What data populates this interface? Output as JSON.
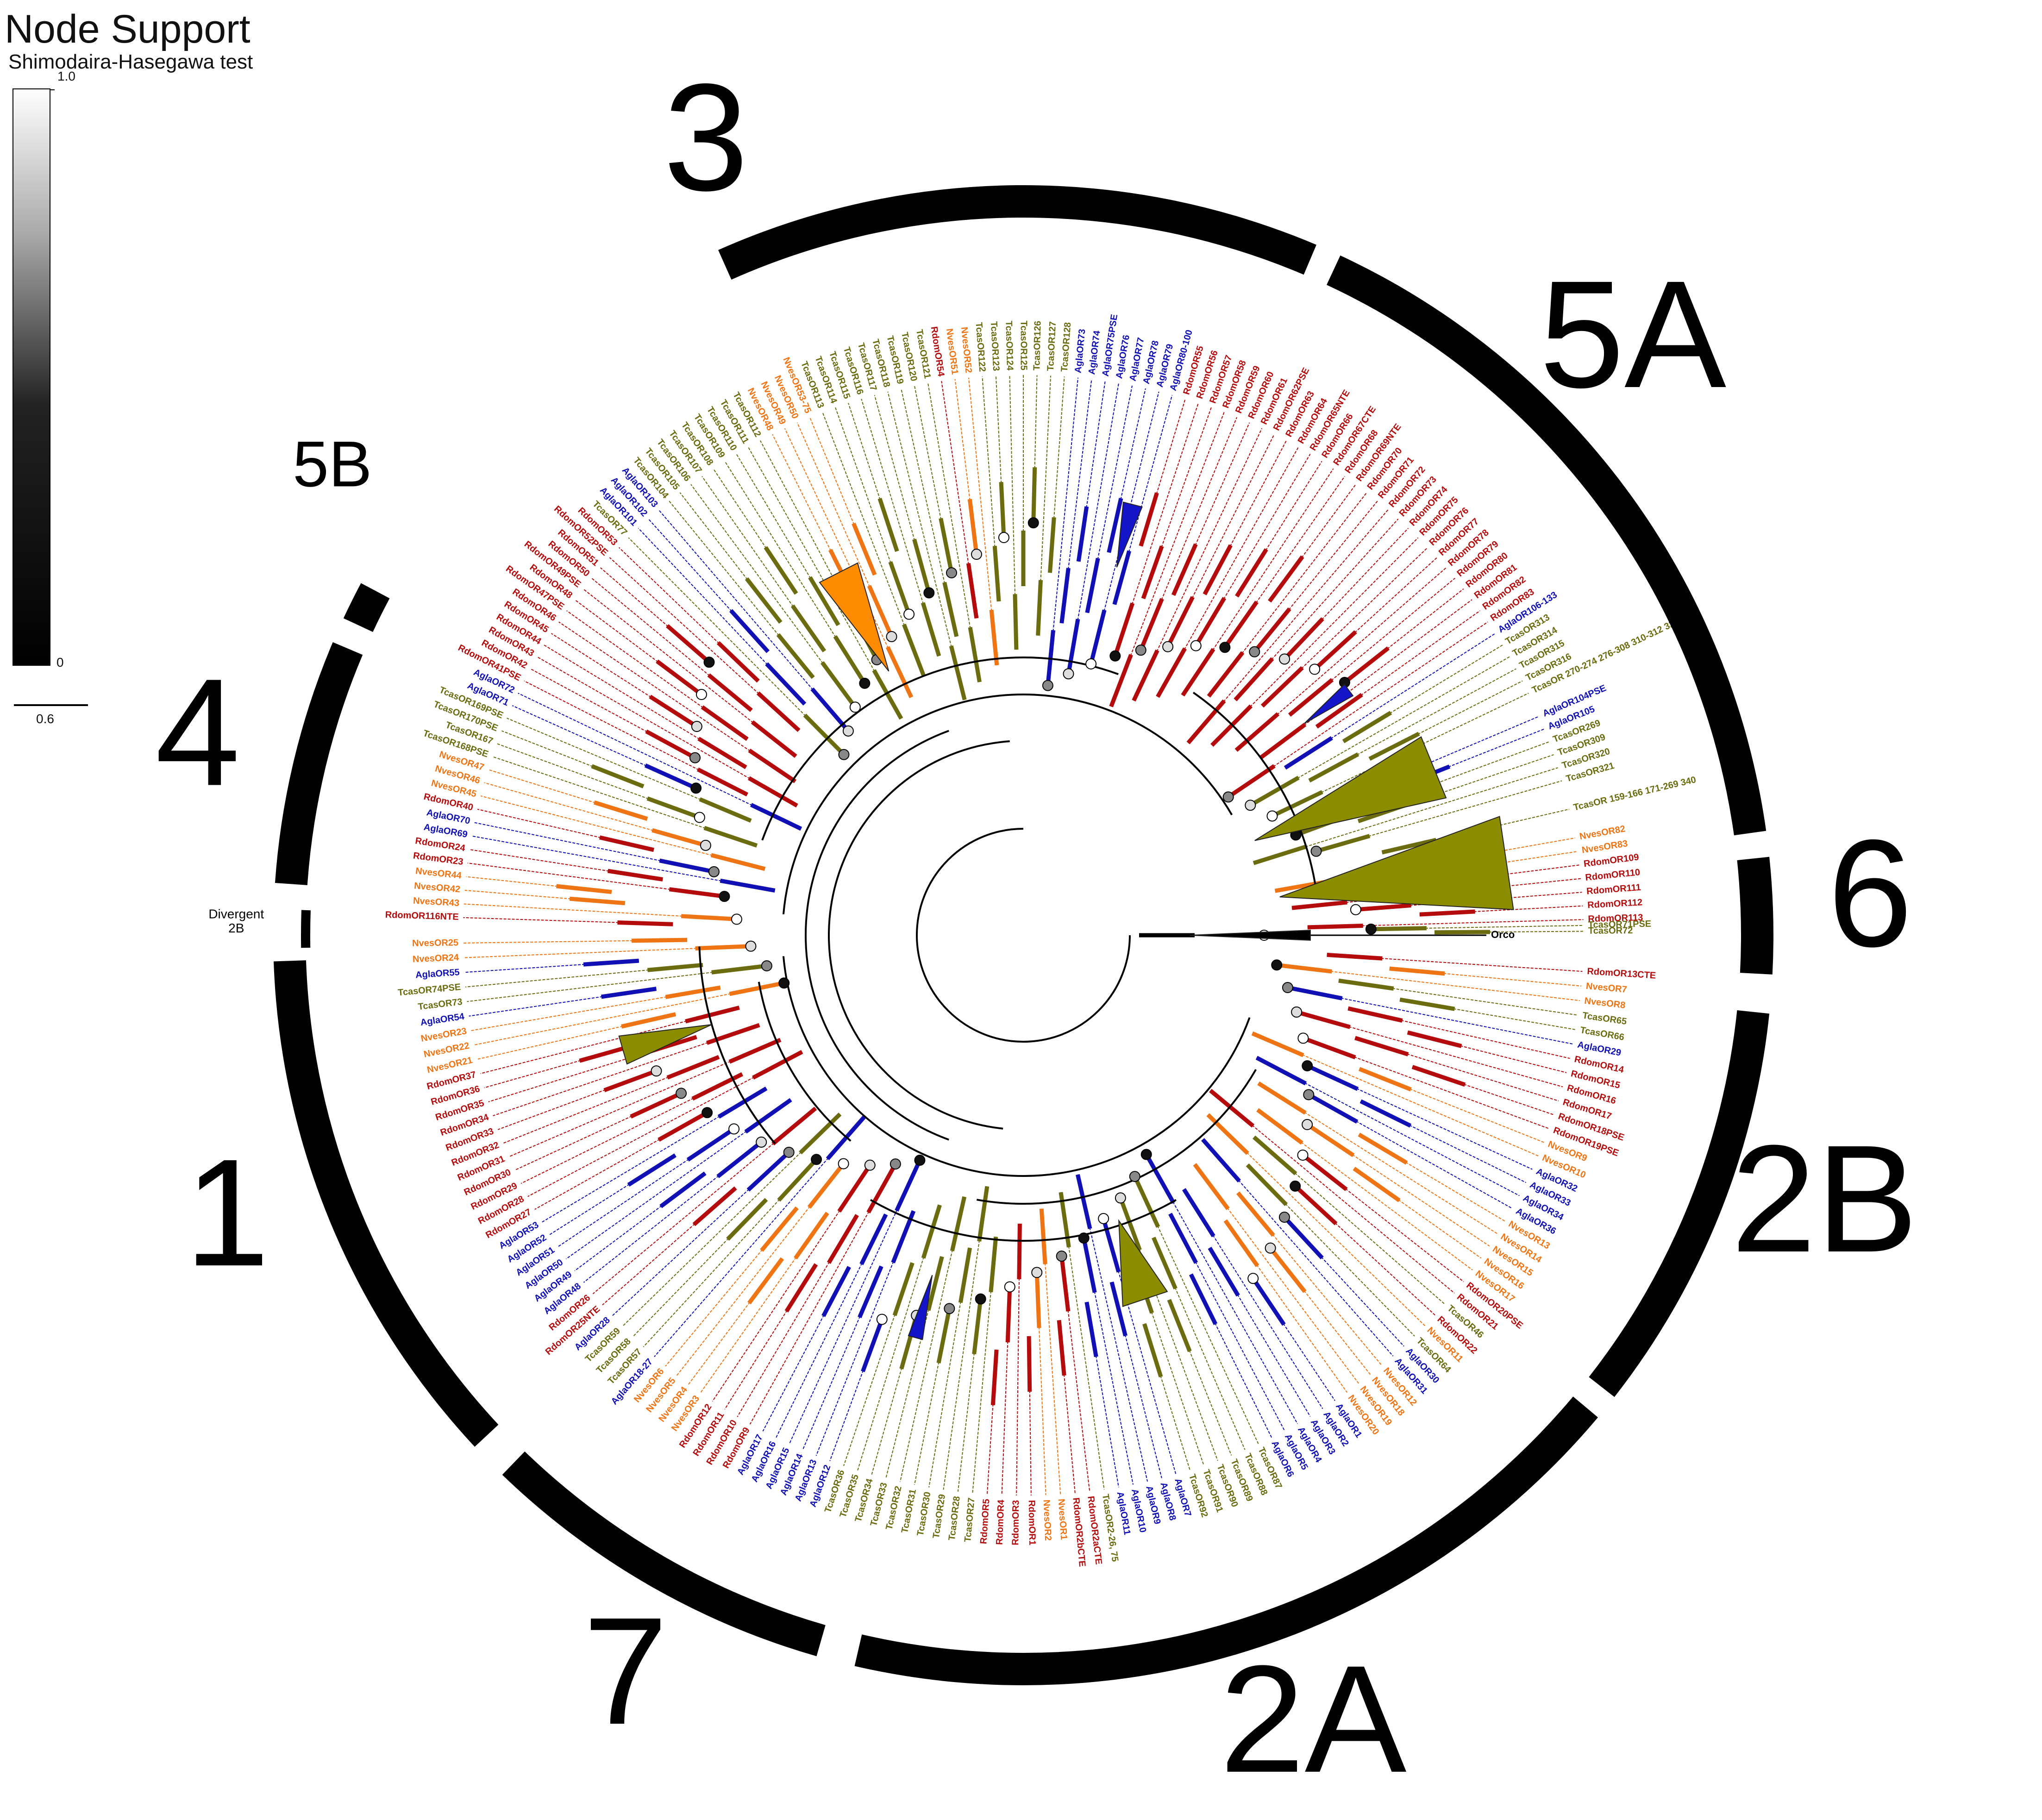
{
  "legend": {
    "title": "Node Support",
    "subtitle": "Shimodaira-Hasegawa test",
    "scale_max": "1.0",
    "scale_min": "0",
    "branch_scale": "0.6"
  },
  "colors": {
    "Agla": "#1010b4",
    "Rdom": "#b40c0c",
    "Nves": "#ee7414",
    "Tcas": "#6b6b10",
    "Orco": "#000000",
    "collapsed_tcas": "#8c8c00",
    "collapsed_nves": "#ff8c00",
    "collapsed_agla": "#1414c8"
  },
  "clades": [
    {
      "label": "3",
      "start_deg": -114,
      "end_deg": -67,
      "size": "large",
      "label_deg": -112
    },
    {
      "label": "5A",
      "start_deg": -65,
      "end_deg": -8,
      "size": "large",
      "label_deg": -44
    },
    {
      "label": "6",
      "start_deg": -6,
      "end_deg": 3,
      "size": "large",
      "label_deg": -2
    },
    {
      "label": "2B",
      "start_deg": 6,
      "end_deg": 38,
      "size": "large",
      "label_deg": 19
    },
    {
      "label": "2A",
      "start_deg": 40,
      "end_deg": 103,
      "size": "large",
      "label_deg": 70
    },
    {
      "label": "7",
      "start_deg": 106,
      "end_deg": 134,
      "size": "large",
      "label_deg": 118
    },
    {
      "label": "1",
      "start_deg": 137,
      "end_deg": 178,
      "size": "large",
      "label_deg": 160
    },
    {
      "label": "Divergent 2B",
      "start_deg": 179,
      "end_deg": 182,
      "size": "tiny",
      "label_deg": 181
    },
    {
      "label": "4",
      "start_deg": 184,
      "end_deg": 203,
      "size": "large",
      "label_deg": 193
    },
    {
      "label": "5B",
      "start_deg": 205,
      "end_deg": 208,
      "size": "small",
      "label_deg": 214
    }
  ],
  "outgroup_label": "Orco",
  "tree_leaves": [
    {
      "label": "Orco",
      "deg": 0.0
    },
    {
      "label": "RdomOR13CTE",
      "deg": 3.7
    },
    {
      "label": "NvesOR7",
      "deg": 5.2
    },
    {
      "label": "NvesOR8",
      "deg": 6.7
    },
    {
      "label": "TcasOR65",
      "deg": 8.2
    },
    {
      "label": "TcasOR66",
      "deg": 9.7
    },
    {
      "label": "AglaOR29",
      "deg": 11.2
    },
    {
      "label": "RdomOR14",
      "deg": 12.7
    },
    {
      "label": "RdomOR15",
      "deg": 14.2
    },
    {
      "label": "RdomOR16",
      "deg": 15.7
    },
    {
      "label": "RdomOR17",
      "deg": 17.2
    },
    {
      "label": "RdomOR18PSE",
      "deg": 18.7
    },
    {
      "label": "RdomOR19PSE",
      "deg": 20.2
    },
    {
      "label": "NvesOR9",
      "deg": 21.7
    },
    {
      "label": "NvesOR10",
      "deg": 23.2
    },
    {
      "label": "AglaOR32",
      "deg": 24.7
    },
    {
      "label": "AglaOR33",
      "deg": 26.2
    },
    {
      "label": "AglaOR34",
      "deg": 27.7
    },
    {
      "label": "AglaOR36",
      "deg": 29.2
    },
    {
      "label": "NvesOR13",
      "deg": 30.7
    },
    {
      "label": "NvesOR14",
      "deg": 32.2
    },
    {
      "label": "NvesOR15",
      "deg": 33.7
    },
    {
      "label": "NvesOR16",
      "deg": 35.2
    },
    {
      "label": "NvesOR17",
      "deg": 36.7
    },
    {
      "label": "RdomOR20PSE",
      "deg": 38.2
    },
    {
      "label": "RdomOR21",
      "deg": 39.7
    },
    {
      "label": "TcasOR46",
      "deg": 41.2
    },
    {
      "label": "RdomOR22",
      "deg": 42.7
    },
    {
      "label": "NvesOR11",
      "deg": 44.2
    },
    {
      "label": "TcasOR64",
      "deg": 45.7
    },
    {
      "label": "AglaOR30",
      "deg": 47.2
    },
    {
      "label": "AglaOR31",
      "deg": 48.7
    },
    {
      "label": "NvesOR12",
      "deg": 50.2
    },
    {
      "label": "NvesOR18",
      "deg": 51.7
    },
    {
      "label": "NvesOR19",
      "deg": 53.2
    },
    {
      "label": "NvesOR20",
      "deg": 54.7
    },
    {
      "label": "AglaOR1",
      "deg": 56.2
    },
    {
      "label": "AglaOR2",
      "deg": 57.7
    },
    {
      "label": "AglaOR3",
      "deg": 59.2
    },
    {
      "label": "AglaOR4",
      "deg": 60.7
    },
    {
      "label": "AglaOR5",
      "deg": 62.2
    },
    {
      "label": "AglaOR6",
      "deg": 63.7
    },
    {
      "label": "TcasOR87",
      "deg": 65.2
    },
    {
      "label": "TcasOR88",
      "deg": 66.7
    },
    {
      "label": "TcasOR89",
      "deg": 68.2
    },
    {
      "label": "TcasOR90",
      "deg": 69.7
    },
    {
      "label": "TcasOR91",
      "deg": 71.2
    },
    {
      "label": "TcasOR92",
      "deg": 72.7
    },
    {
      "label": "AglaOR7",
      "deg": 74.2
    },
    {
      "label": "AglaOR8",
      "deg": 75.7
    },
    {
      "label": "AglaOR9",
      "deg": 77.2
    },
    {
      "label": "AglaOR10",
      "deg": 78.7
    },
    {
      "label": "AglaOR11",
      "deg": 80.2
    },
    {
      "label": "TcasOR2-26, 75",
      "deg": 81.7
    },
    {
      "label": "RdomOR2aCTE",
      "deg": 83.2
    },
    {
      "label": "RdomOR2bCTE",
      "deg": 84.7
    },
    {
      "label": "NvesOR1",
      "deg": 86.2
    },
    {
      "label": "NvesOR2",
      "deg": 87.7
    },
    {
      "label": "RdomOR1",
      "deg": 89.2
    },
    {
      "label": "RdomOR3",
      "deg": 90.7
    },
    {
      "label": "RdomOR4",
      "deg": 92.2
    },
    {
      "label": "RdomOR5",
      "deg": 93.7
    },
    {
      "label": "TcasOR27",
      "deg": 95.2
    },
    {
      "label": "TcasOR28",
      "deg": 96.7
    },
    {
      "label": "TcasOR29",
      "deg": 98.2
    },
    {
      "label": "TcasOR30",
      "deg": 99.7
    },
    {
      "label": "TcasOR31",
      "deg": 101.2
    },
    {
      "label": "TcasOR32",
      "deg": 102.7
    },
    {
      "label": "TcasOR33",
      "deg": 104.2
    },
    {
      "label": "TcasOR34",
      "deg": 105.7
    },
    {
      "label": "TcasOR35",
      "deg": 107.2
    },
    {
      "label": "TcasOR36",
      "deg": 108.7
    },
    {
      "label": "AglaOR12",
      "deg": 110.2
    },
    {
      "label": "AglaOR13",
      "deg": 111.7
    },
    {
      "label": "AglaOR14",
      "deg": 113.2
    },
    {
      "label": "AglaOR15",
      "deg": 114.7
    },
    {
      "label": "AglaOR16",
      "deg": 116.2
    },
    {
      "label": "AglaOR17",
      "deg": 117.7
    },
    {
      "label": "RdomOR9",
      "deg": 119.2
    },
    {
      "label": "RdomOR10",
      "deg": 120.7
    },
    {
      "label": "RdomOR11",
      "deg": 122.2
    },
    {
      "label": "RdomOR12",
      "deg": 123.7
    },
    {
      "label": "NvesOR3",
      "deg": 125.2
    },
    {
      "label": "NvesOR4",
      "deg": 126.7
    },
    {
      "label": "NvesOR5",
      "deg": 128.2
    },
    {
      "label": "NvesOR6",
      "deg": 129.7
    },
    {
      "label": "AglaOR18-27",
      "deg": 131.2
    },
    {
      "label": "TcasOR57",
      "deg": 132.7
    },
    {
      "label": "TcasOR58",
      "deg": 134.2
    },
    {
      "label": "TcasOR59",
      "deg": 135.7
    },
    {
      "label": "AglaOR28",
      "deg": 137.2
    },
    {
      "label": "RdomOR25NTE",
      "deg": 138.7
    },
    {
      "label": "RdomOR26",
      "deg": 140.2
    },
    {
      "label": "AglaOR48",
      "deg": 141.7
    },
    {
      "label": "AglaOR49",
      "deg": 143.2
    },
    {
      "label": "AglaOR50",
      "deg": 144.7
    },
    {
      "label": "AglaOR51",
      "deg": 146.2
    },
    {
      "label": "AglaOR52",
      "deg": 147.7
    },
    {
      "label": "AglaOR53",
      "deg": 149.2
    },
    {
      "label": "RdomOR27",
      "deg": 150.7
    },
    {
      "label": "RdomOR28",
      "deg": 152.2
    },
    {
      "label": "RdomOR29",
      "deg": 153.7
    },
    {
      "label": "RdomOR30",
      "deg": 155.2
    },
    {
      "label": "RdomOR31",
      "deg": 156.7
    },
    {
      "label": "RdomOR32",
      "deg": 158.2
    },
    {
      "label": "RdomOR33",
      "deg": 159.7
    },
    {
      "label": "RdomOR34",
      "deg": 161.2
    },
    {
      "label": "RdomOR35",
      "deg": 162.7
    },
    {
      "label": "RdomOR36",
      "deg": 164.2
    },
    {
      "label": "RdomOR37",
      "deg": 165.7
    },
    {
      "label": "NvesOR21",
      "deg": 167.2
    },
    {
      "label": "NvesOR22",
      "deg": 168.7
    },
    {
      "label": "NvesOR23",
      "deg": 170.2
    },
    {
      "label": "AglaOR54",
      "deg": 171.7
    },
    {
      "label": "TcasOR73",
      "deg": 173.2
    },
    {
      "label": "TcasOR74PSE",
      "deg": 174.7
    },
    {
      "label": "AglaOR55",
      "deg": 176.2
    },
    {
      "label": "NvesOR24",
      "deg": 177.7
    },
    {
      "label": "NvesOR25",
      "deg": 179.2
    }
  ],
  "tree_leaves_upper": [
    {
      "label": "NvesOR42",
      "deg": 184.6
    },
    {
      "label": "NvesOR43",
      "deg": 183.2
    },
    {
      "label": "RdomOR116NTE",
      "deg": 181.8
    },
    {
      "label": "NvesOR44",
      "deg": 186.0
    },
    {
      "label": "RdomOR23",
      "deg": 187.4
    },
    {
      "label": "RdomOR24",
      "deg": 188.8
    },
    {
      "label": "AglaOR69",
      "deg": 190.2
    },
    {
      "label": "AglaOR70",
      "deg": 191.6
    },
    {
      "label": "RdomOR40",
      "deg": 193.0
    },
    {
      "label": "NvesOR45",
      "deg": 194.4
    },
    {
      "label": "NvesOR46",
      "deg": 195.8
    },
    {
      "label": "NvesOR47",
      "deg": 197.2
    },
    {
      "label": "TcasOR168PSE",
      "deg": 198.6
    },
    {
      "label": "TcasOR167",
      "deg": 200.0
    },
    {
      "label": "TcasOR170PSE",
      "deg": 201.4
    },
    {
      "label": "TcasOR169PSE",
      "deg": 202.8
    },
    {
      "label": "AglaOR71",
      "deg": 204.2
    },
    {
      "label": "AglaOR72",
      "deg": 205.6
    },
    {
      "label": "RdomOR41PSE",
      "deg": 207.0
    },
    {
      "label": "RdomOR42",
      "deg": 208.4
    },
    {
      "label": "RdomOR43",
      "deg": 209.8
    },
    {
      "label": "RdomOR44",
      "deg": 211.2
    },
    {
      "label": "RdomOR45",
      "deg": 212.6
    },
    {
      "label": "RdomOR46",
      "deg": 214.0
    },
    {
      "label": "RdomOR47PSE",
      "deg": 215.4
    },
    {
      "label": "RdomOR48",
      "deg": 216.8
    },
    {
      "label": "RdomOR49PSE",
      "deg": 218.2
    },
    {
      "label": "RdomOR50",
      "deg": 219.6
    },
    {
      "label": "RdomOR51",
      "deg": 221.0
    },
    {
      "label": "RdomOR52PSE",
      "deg": 222.4
    },
    {
      "label": "RdomOR53",
      "deg": 223.8
    },
    {
      "label": "TcasOR77",
      "deg": 225.2
    },
    {
      "label": "AglaOR101",
      "deg": 226.6
    },
    {
      "label": "AglaOR102",
      "deg": 228.0
    },
    {
      "label": "AglaOR103",
      "deg": 229.4
    },
    {
      "label": "TcasOR104",
      "deg": 230.8
    },
    {
      "label": "TcasOR105",
      "deg": 232.2
    },
    {
      "label": "TcasOR106",
      "deg": 233.6
    },
    {
      "label": "TcasOR107",
      "deg": 235.0
    },
    {
      "label": "TcasOR108",
      "deg": 236.4
    },
    {
      "label": "TcasOR109",
      "deg": 237.8
    },
    {
      "label": "TcasOR110",
      "deg": 239.2
    },
    {
      "label": "TcasOR111",
      "deg": 240.6
    },
    {
      "label": "TcasOR112",
      "deg": 242.0
    },
    {
      "label": "NvesOR48",
      "deg": 243.4
    },
    {
      "label": "NvesOR49",
      "deg": 244.8
    },
    {
      "label": "NvesOR50",
      "deg": 246.2
    },
    {
      "label": "NvesOR53-75",
      "deg": 247.6
    },
    {
      "label": "TcasOR113",
      "deg": 249.0
    },
    {
      "label": "TcasOR114",
      "deg": 250.4
    },
    {
      "label": "TcasOR115",
      "deg": 251.8
    },
    {
      "label": "TcasOR116",
      "deg": 253.2
    },
    {
      "label": "TcasOR117",
      "deg": 254.6
    },
    {
      "label": "TcasOR118",
      "deg": 256.0
    },
    {
      "label": "TcasOR119",
      "deg": 257.4
    },
    {
      "label": "TcasOR120",
      "deg": 258.8
    },
    {
      "label": "TcasOR121",
      "deg": 260.2
    },
    {
      "label": "RdomOR54",
      "deg": 261.6
    },
    {
      "label": "NvesOR51",
      "deg": 263.0
    },
    {
      "label": "NvesOR52",
      "deg": 264.4
    },
    {
      "label": "TcasOR122",
      "deg": 265.8
    },
    {
      "label": "TcasOR123",
      "deg": 267.2
    },
    {
      "label": "TcasOR124",
      "deg": 268.6
    },
    {
      "label": "TcasOR125",
      "deg": 270.0
    },
    {
      "label": "TcasOR126",
      "deg": 271.4
    },
    {
      "label": "TcasOR127",
      "deg": 272.8
    },
    {
      "label": "TcasOR128",
      "deg": 274.2
    },
    {
      "label": "AglaOR73",
      "deg": 275.6
    },
    {
      "label": "AglaOR74",
      "deg": 277.0
    },
    {
      "label": "AglaOR75PSE",
      "deg": 278.4
    },
    {
      "label": "AglaOR76",
      "deg": 279.8
    },
    {
      "label": "AglaOR77",
      "deg": 281.2
    },
    {
      "label": "AglaOR78",
      "deg": 282.6
    },
    {
      "label": "AglaOR79",
      "deg": 284.0
    },
    {
      "label": "AglaOR80-100",
      "deg": 285.4
    },
    {
      "label": "RdomOR55",
      "deg": 286.8
    },
    {
      "label": "RdomOR56",
      "deg": 288.2
    },
    {
      "label": "RdomOR57",
      "deg": 289.6
    },
    {
      "label": "RdomOR58",
      "deg": 291.0
    },
    {
      "label": "RdomOR59",
      "deg": 292.4
    },
    {
      "label": "RdomOR60",
      "deg": 293.8
    },
    {
      "label": "RdomOR61",
      "deg": 295.2
    },
    {
      "label": "RdomOR62PSE",
      "deg": 296.6
    },
    {
      "label": "RdomOR63",
      "deg": 298.0
    },
    {
      "label": "RdomOR64",
      "deg": 299.4
    },
    {
      "label": "RdomOR65NTE",
      "deg": 300.8
    },
    {
      "label": "RdomOR66",
      "deg": 302.2
    },
    {
      "label": "RdomOR67CTE",
      "deg": 303.6
    },
    {
      "label": "RdomOR68",
      "deg": 305.0
    },
    {
      "label": "RdomOR69NTE",
      "deg": 306.4
    },
    {
      "label": "RdomOR70",
      "deg": 307.8
    },
    {
      "label": "RdomOR71",
      "deg": 309.2
    },
    {
      "label": "RdomOR72",
      "deg": 310.6
    },
    {
      "label": "RdomOR73",
      "deg": 312.0
    },
    {
      "label": "RdomOR74",
      "deg": 313.4
    },
    {
      "label": "RdomOR75",
      "deg": 314.8
    },
    {
      "label": "RdomOR76",
      "deg": 316.2
    },
    {
      "label": "RdomOR77",
      "deg": 317.6
    },
    {
      "label": "RdomOR78",
      "deg": 319.0
    },
    {
      "label": "RdomOR79",
      "deg": 320.4
    },
    {
      "label": "RdomOR80",
      "deg": 321.8
    },
    {
      "label": "RdomOR81",
      "deg": 323.2
    },
    {
      "label": "RdomOR82",
      "deg": 324.6
    },
    {
      "label": "RdomOR83",
      "deg": 326.0
    },
    {
      "label": "AglaOR106-133",
      "deg": 327.4
    },
    {
      "label": "TcasOR313",
      "deg": 328.8
    },
    {
      "label": "TcasOR314",
      "deg": 330.2
    },
    {
      "label": "TcasOR315",
      "deg": 331.6
    },
    {
      "label": "TcasOR316",
      "deg": 333.0
    },
    {
      "label": "TcasOR 270-274 276-308 310-312 323-335",
      "deg": 334.4
    },
    {
      "label": "AglaOR104PSE",
      "deg": 337.0
    },
    {
      "label": "AglaOR105",
      "deg": 338.4
    },
    {
      "label": "TcasOR269",
      "deg": 339.8
    },
    {
      "label": "TcasOR309",
      "deg": 341.2
    },
    {
      "label": "TcasOR320",
      "deg": 342.6
    },
    {
      "label": "TcasOR321",
      "deg": 344.0
    },
    {
      "label": "TcasOR 159-166 171-269 340",
      "deg": 347.0
    },
    {
      "label": "NvesOR82",
      "deg": 350.0
    },
    {
      "label": "NvesOR83",
      "deg": 351.4
    },
    {
      "label": "RdomOR109",
      "deg": 352.8
    },
    {
      "label": "RdomOR110",
      "deg": 354.2
    },
    {
      "label": "RdomOR111",
      "deg": 355.6
    },
    {
      "label": "RdomOR112",
      "deg": 357.0
    },
    {
      "label": "RdomOR113",
      "deg": 358.4
    },
    {
      "label": "TcasOR71PSE",
      "deg": 359.0
    },
    {
      "label": "TcasOR72",
      "deg": 359.6
    }
  ],
  "collapsed_triangles": [
    {
      "taxon": "Tcas",
      "deg_start": 333.5,
      "deg_end": 342.0,
      "inner": 540,
      "outer": 960
    },
    {
      "taxon": "Tcas",
      "deg_start": 346.0,
      "deg_end": 357.0,
      "inner": 560,
      "outer": 1060
    },
    {
      "taxon": "Agla",
      "deg_start": 322.0,
      "deg_end": 324.0,
      "inner": 760,
      "outer": 880
    },
    {
      "taxon": "Agla",
      "deg_start": 283.0,
      "deg_end": 285.5,
      "inner": 820,
      "outer": 960
    },
    {
      "taxon": "Nves",
      "deg_start": 240.0,
      "deg_end": 246.0,
      "inner": 640,
      "outer": 880
    },
    {
      "taxon": "Tcas",
      "deg_start": 162.0,
      "deg_end": 166.0,
      "inner": 700,
      "outer": 900
    },
    {
      "taxon": "Tcas",
      "deg_start": 68.0,
      "deg_end": 75.0,
      "inner": 650,
      "outer": 830
    },
    {
      "taxon": "Agla",
      "deg_start": 104.0,
      "deg_end": 106.0,
      "inner": 760,
      "outer": 900
    },
    {
      "taxon": "Orco",
      "deg_start": -1.0,
      "deg_end": 1.0,
      "inner": 360,
      "outer": 620
    }
  ]
}
